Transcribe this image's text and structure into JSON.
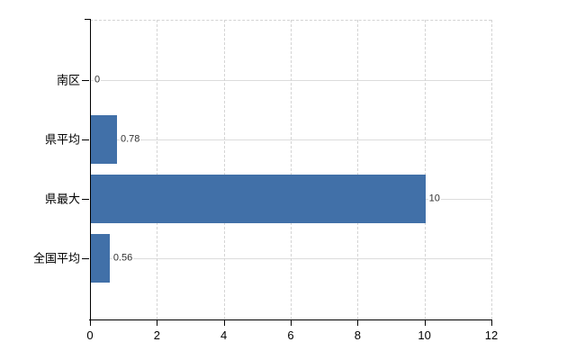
{
  "chart_data": {
    "type": "bar",
    "orientation": "horizontal",
    "title": "",
    "xlabel": "",
    "ylabel": "",
    "categories": [
      "南区",
      "県平均",
      "県最大",
      "全国平均"
    ],
    "values": [
      0,
      0.78,
      10,
      0.56
    ],
    "value_labels": [
      "0",
      "0.78",
      "10",
      "0.56"
    ],
    "xlim": [
      0,
      12
    ],
    "x_ticks": [
      0,
      2,
      4,
      6,
      8,
      10,
      12
    ],
    "x_tick_labels": [
      "0",
      "2",
      "4",
      "6",
      "8",
      "10",
      "12"
    ],
    "grid": true,
    "legend": false,
    "colors": {
      "bar": "#4170A8",
      "grid_vertical": "#d4d4d4",
      "grid_horizontal": "#dcdcdc",
      "axis": "#000000",
      "category_label": "#000000",
      "tick_label": "#000000",
      "value_label": "#303030",
      "background": "#ffffff"
    }
  }
}
